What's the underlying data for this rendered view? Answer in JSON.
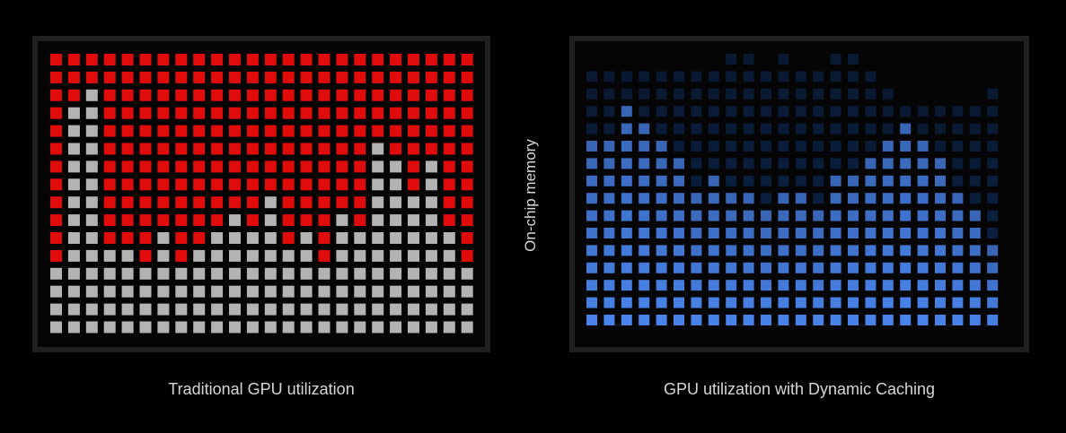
{
  "axis_label": "On-chip memory",
  "captions": {
    "left": "Traditional GPU utilization",
    "right": "GPU utilization with Dynamic Caching"
  },
  "colors": {
    "allocated_unused": "#e00b0b",
    "used": "#b3b3b3",
    "dynamic_bright": "#4a86f0",
    "dynamic_dim": "#0d2a55",
    "panel_border": "#202020",
    "background": "#000000"
  },
  "traditional_grid": {
    "columns": 24,
    "rows": 16,
    "used_rows_from_bottom": [
      4,
      13,
      14,
      5,
      5,
      4,
      6,
      4,
      5,
      6,
      7,
      6,
      8,
      5,
      6,
      4,
      7,
      6,
      11,
      10,
      8,
      10,
      6,
      4
    ]
  },
  "dynamic_grid": {
    "columns": 24,
    "rows": 16,
    "bright_rows_from_bottom": [
      11,
      11,
      13,
      12,
      11,
      10,
      8,
      9,
      8,
      8,
      7,
      8,
      8,
      7,
      9,
      9,
      10,
      11,
      12,
      11,
      10,
      8,
      7,
      5
    ],
    "allocated_rows_from_bottom": [
      15,
      15,
      15,
      15,
      15,
      15,
      15,
      15,
      16,
      16,
      15,
      16,
      15,
      15,
      16,
      16,
      15,
      14,
      13,
      13,
      13,
      13,
      13,
      14
    ]
  }
}
